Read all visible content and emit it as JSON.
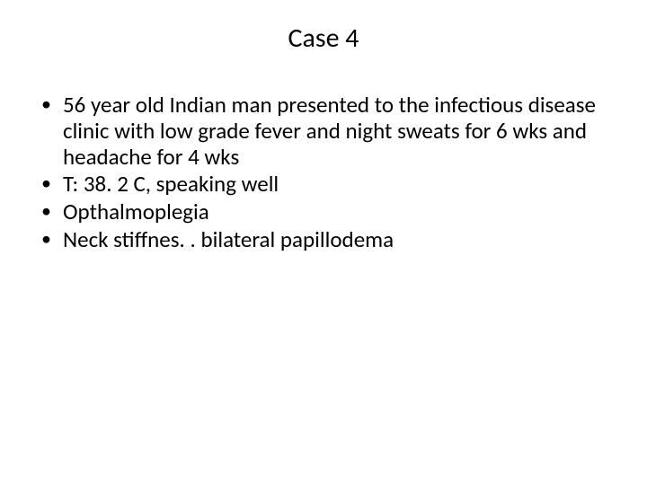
{
  "slide": {
    "title": "Case 4",
    "bullets": [
      "56 year old Indian man presented to the infectious disease clinic with low grade fever and night sweats for 6 wks and headache for 4 wks",
      "T: 38. 2 C, speaking well",
      "Opthalmoplegia",
      "Neck stiffnes. . bilateral papillodema"
    ],
    "colors": {
      "background": "#ffffff",
      "text": "#000000"
    },
    "typography": {
      "title_fontsize": 30,
      "bullet_fontsize": 25,
      "font_family": "Calibri"
    }
  }
}
